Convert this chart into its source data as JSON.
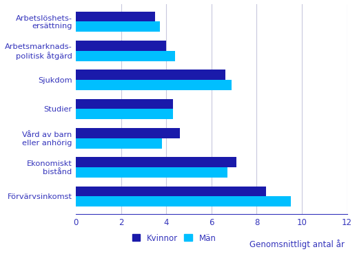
{
  "categories": [
    "Arbetslöshets-\nersättning",
    "Arbetsmarknads-\npolitisk åtgärd",
    "Sjukdom",
    "Studier",
    "Vård av barn\neller anhörig",
    "Ekonomiskt\nbistånd",
    "Förvärvsinkomst"
  ],
  "kvinnor": [
    3.5,
    4.0,
    6.6,
    4.3,
    4.6,
    7.1,
    8.4
  ],
  "man": [
    3.7,
    4.4,
    6.9,
    4.3,
    3.8,
    6.7,
    9.5
  ],
  "color_kvinnor": "#1a1aaa",
  "color_man": "#00bfff",
  "xlabel": "Genomsnittligt antal år",
  "legend_kvinnor": "Kvinnor",
  "legend_man": "Män",
  "xlim": [
    0,
    12
  ],
  "xticks": [
    0,
    2,
    4,
    6,
    8,
    10,
    12
  ],
  "label_color": "#3333bb",
  "background_color": "#ffffff",
  "grid_color": "#c8c8dd"
}
